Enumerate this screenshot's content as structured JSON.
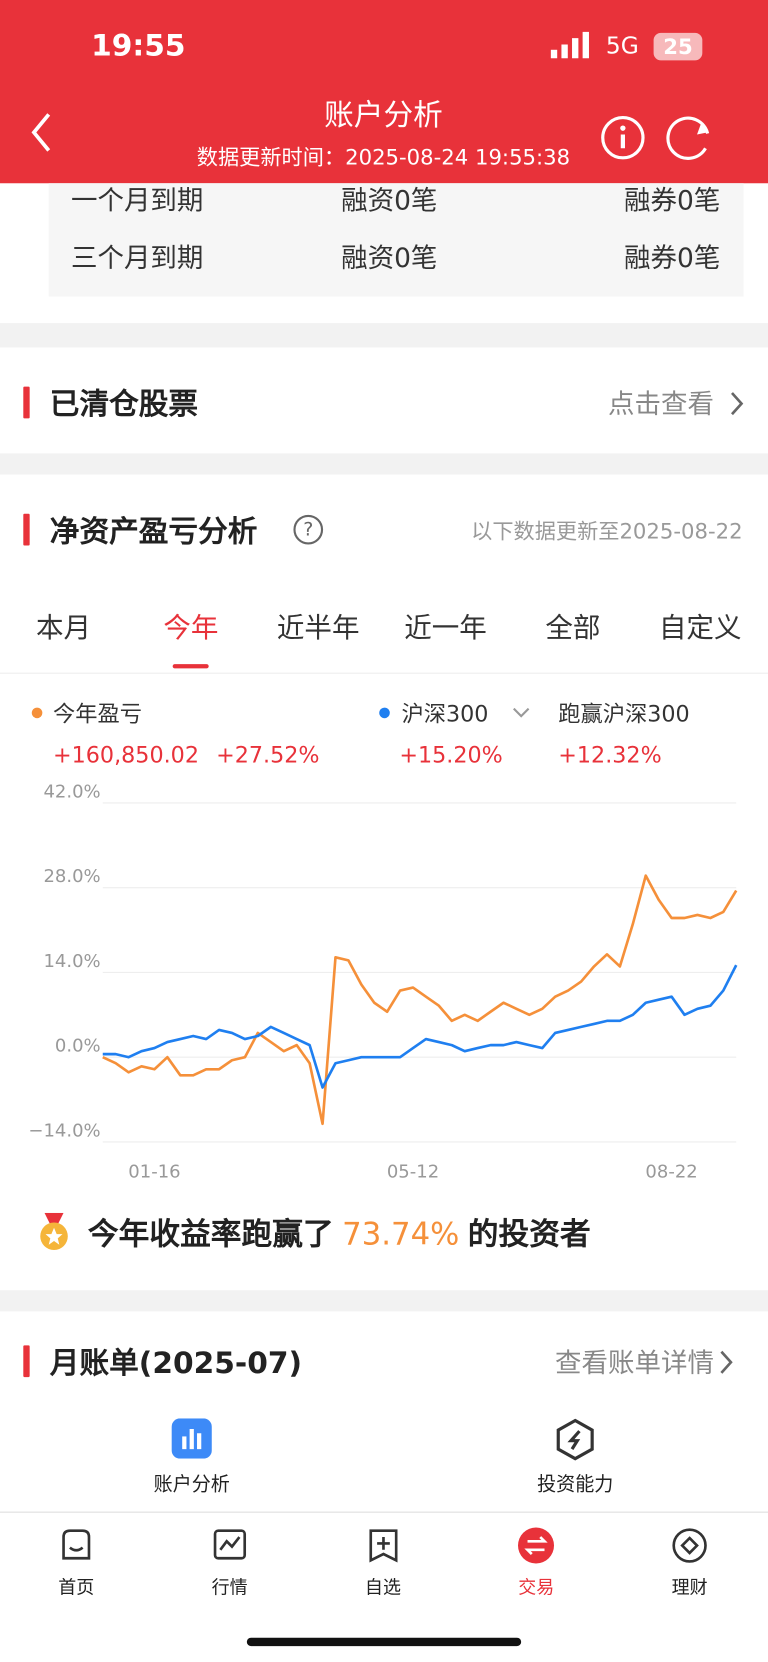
{
  "status_bar": {
    "time": "19:55",
    "network": "5G",
    "battery": "25"
  },
  "header": {
    "title": "账户分析",
    "subtitle": "数据更新时间：2025-08-24 19:55:38"
  },
  "maturity_rows": [
    [
      "一个月到期",
      "融资0笔",
      "融券0笔"
    ],
    [
      "三个月到期",
      "融资0笔",
      "融券0笔"
    ]
  ],
  "cleared_stocks": {
    "title": "已清仓股票",
    "link": "点击查看"
  },
  "pnl_section": {
    "title": "净资产盈亏分析",
    "help_icon": "?",
    "updated": "以下数据更新至2025-08-22",
    "tabs": [
      "本月",
      "今年",
      "近半年",
      "近一年",
      "全部",
      "自定义"
    ],
    "active_tab": 1,
    "summary": {
      "pnl_amount": "+160,850.02",
      "pnl_rate": "+27.52%",
      "benchmark_rate": "+15.20%",
      "excess_label": "跑赢沪深300",
      "excess_rate": "+12.32%"
    }
  },
  "chart_data": {
    "type": "line",
    "categories": [
      null,
      null,
      null,
      null,
      "01-16",
      null,
      null,
      null,
      null,
      null,
      null,
      null,
      null,
      null,
      null,
      null,
      null,
      null,
      null,
      null,
      null,
      null,
      null,
      null,
      "05-12",
      null,
      null,
      null,
      null,
      null,
      null,
      null,
      null,
      null,
      null,
      null,
      null,
      null,
      null,
      null,
      null,
      null,
      null,
      null,
      "08-22",
      null,
      null,
      null,
      null,
      null
    ],
    "series": [
      {
        "name": "今年盈亏",
        "color": "#f5903a",
        "values": [
          0,
          -1,
          -2.5,
          -1.5,
          -2,
          0,
          -3,
          -3,
          -2,
          -2,
          -0.5,
          0,
          4,
          2.5,
          1,
          2,
          -1,
          -11,
          16.5,
          16,
          12,
          9,
          7.5,
          11,
          11.5,
          10,
          8.5,
          6,
          7,
          6,
          7.5,
          9,
          8,
          7,
          8,
          10,
          11,
          12.5,
          15,
          17,
          15,
          22,
          30,
          26,
          23,
          23,
          23.5,
          23,
          24,
          27.52
        ]
      },
      {
        "name": "沪深300",
        "color": "#1f7ff0",
        "values": [
          0.5,
          0.5,
          0,
          1,
          1.5,
          2.5,
          3,
          3.5,
          3,
          4.5,
          4,
          3,
          3.5,
          5,
          4,
          3,
          2,
          -5,
          -1,
          -0.5,
          0,
          0,
          0,
          0,
          1.5,
          3,
          2.5,
          2,
          1,
          1.5,
          2,
          2,
          2.5,
          2,
          1.5,
          4,
          4.5,
          5,
          5.5,
          6,
          6,
          7,
          9,
          9.5,
          10,
          7,
          8,
          8.5,
          11,
          15.2
        ]
      }
    ],
    "ylim": [
      -14,
      42
    ],
    "yticks": [
      {
        "value": -14,
        "label": "−14.0%"
      },
      {
        "value": 0,
        "label": "0.0%"
      },
      {
        "value": 14,
        "label": "14.0%"
      },
      {
        "value": 28,
        "label": "28.0%"
      },
      {
        "value": 42,
        "label": "42.0%"
      }
    ],
    "grid": true
  },
  "ranking": {
    "prefix": "今年收益率跑赢了",
    "percent": "73.74%",
    "suffix": "的投资者"
  },
  "monthly_bill": {
    "title": "月账单(2025-07)",
    "link": "查看账单详情"
  },
  "shortcuts": [
    "账户分析",
    "投资能力"
  ],
  "tab_bar": {
    "items": [
      "首页",
      "行情",
      "自选",
      "交易",
      "理财"
    ],
    "active": 3
  }
}
